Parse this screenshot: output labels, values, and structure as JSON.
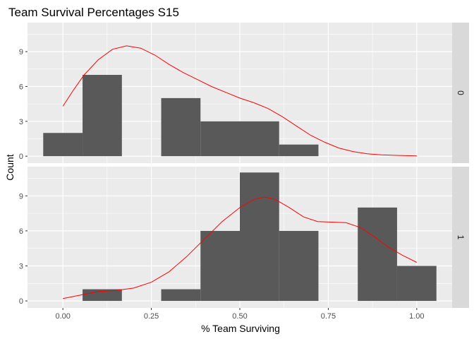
{
  "chart_data": {
    "type": "bar",
    "subtype": "histogram-with-density-overlay",
    "title": "Team Survival Percentages S15",
    "xlabel": "% Team Surviving",
    "ylabel": "Count",
    "xlim": [
      -0.1,
      1.1
    ],
    "ylim": [
      -0.6,
      11.5
    ],
    "x_ticks": [
      0.0,
      0.25,
      0.5,
      0.75,
      1.0
    ],
    "x_tick_labels": [
      "0.00",
      "0.25",
      "0.50",
      "0.75",
      "1.00"
    ],
    "y_ticks": [
      0,
      3,
      6,
      9
    ],
    "y_tick_labels": [
      "0",
      "3",
      "6",
      "9"
    ],
    "grid": true,
    "bar_color": "#595959",
    "density_color": "#ff0000",
    "panel_background": "#ebebeb",
    "strip_background": "#d9d9d9",
    "facets": [
      {
        "strip_label": "0",
        "bins": [
          {
            "x0": -0.0556,
            "x1": 0.0556,
            "count": 2
          },
          {
            "x0": 0.0556,
            "x1": 0.1667,
            "count": 7
          },
          {
            "x0": 0.1667,
            "x1": 0.2778,
            "count": 0
          },
          {
            "x0": 0.2778,
            "x1": 0.3889,
            "count": 5
          },
          {
            "x0": 0.3889,
            "x1": 0.5,
            "count": 3
          },
          {
            "x0": 0.5,
            "x1": 0.6111,
            "count": 3
          },
          {
            "x0": 0.6111,
            "x1": 0.7222,
            "count": 1
          }
        ],
        "density": [
          [
            0.0,
            4.3
          ],
          [
            0.03,
            5.7
          ],
          [
            0.06,
            7.0
          ],
          [
            0.1,
            8.3
          ],
          [
            0.14,
            9.2
          ],
          [
            0.18,
            9.5
          ],
          [
            0.22,
            9.3
          ],
          [
            0.26,
            8.7
          ],
          [
            0.3,
            7.9
          ],
          [
            0.34,
            7.2
          ],
          [
            0.38,
            6.6
          ],
          [
            0.42,
            6.0
          ],
          [
            0.46,
            5.5
          ],
          [
            0.5,
            5.0
          ],
          [
            0.54,
            4.6
          ],
          [
            0.58,
            4.1
          ],
          [
            0.62,
            3.4
          ],
          [
            0.66,
            2.6
          ],
          [
            0.7,
            1.8
          ],
          [
            0.74,
            1.2
          ],
          [
            0.78,
            0.7
          ],
          [
            0.82,
            0.4
          ],
          [
            0.86,
            0.2
          ],
          [
            0.9,
            0.12
          ],
          [
            0.95,
            0.06
          ],
          [
            1.0,
            0.02
          ]
        ]
      },
      {
        "strip_label": "1",
        "bins": [
          {
            "x0": 0.0556,
            "x1": 0.1667,
            "count": 1
          },
          {
            "x0": 0.1667,
            "x1": 0.2778,
            "count": 0
          },
          {
            "x0": 0.2778,
            "x1": 0.3889,
            "count": 1
          },
          {
            "x0": 0.3889,
            "x1": 0.5,
            "count": 6
          },
          {
            "x0": 0.5,
            "x1": 0.6111,
            "count": 11
          },
          {
            "x0": 0.6111,
            "x1": 0.7222,
            "count": 6
          },
          {
            "x0": 0.7222,
            "x1": 0.8333,
            "count": 0
          },
          {
            "x0": 0.8333,
            "x1": 0.9444,
            "count": 8
          },
          {
            "x0": 0.9444,
            "x1": 1.0556,
            "count": 3
          }
        ],
        "density": [
          [
            0.0,
            0.2
          ],
          [
            0.05,
            0.5
          ],
          [
            0.1,
            0.8
          ],
          [
            0.15,
            0.9
          ],
          [
            0.2,
            1.1
          ],
          [
            0.25,
            1.6
          ],
          [
            0.3,
            2.5
          ],
          [
            0.35,
            3.8
          ],
          [
            0.4,
            5.3
          ],
          [
            0.45,
            6.8
          ],
          [
            0.5,
            8.0
          ],
          [
            0.54,
            8.7
          ],
          [
            0.57,
            8.9
          ],
          [
            0.6,
            8.7
          ],
          [
            0.64,
            8.0
          ],
          [
            0.68,
            7.2
          ],
          [
            0.72,
            6.8
          ],
          [
            0.76,
            6.75
          ],
          [
            0.8,
            6.7
          ],
          [
            0.84,
            6.3
          ],
          [
            0.88,
            5.5
          ],
          [
            0.92,
            4.6
          ],
          [
            0.96,
            3.9
          ],
          [
            1.0,
            3.3
          ]
        ]
      }
    ]
  }
}
